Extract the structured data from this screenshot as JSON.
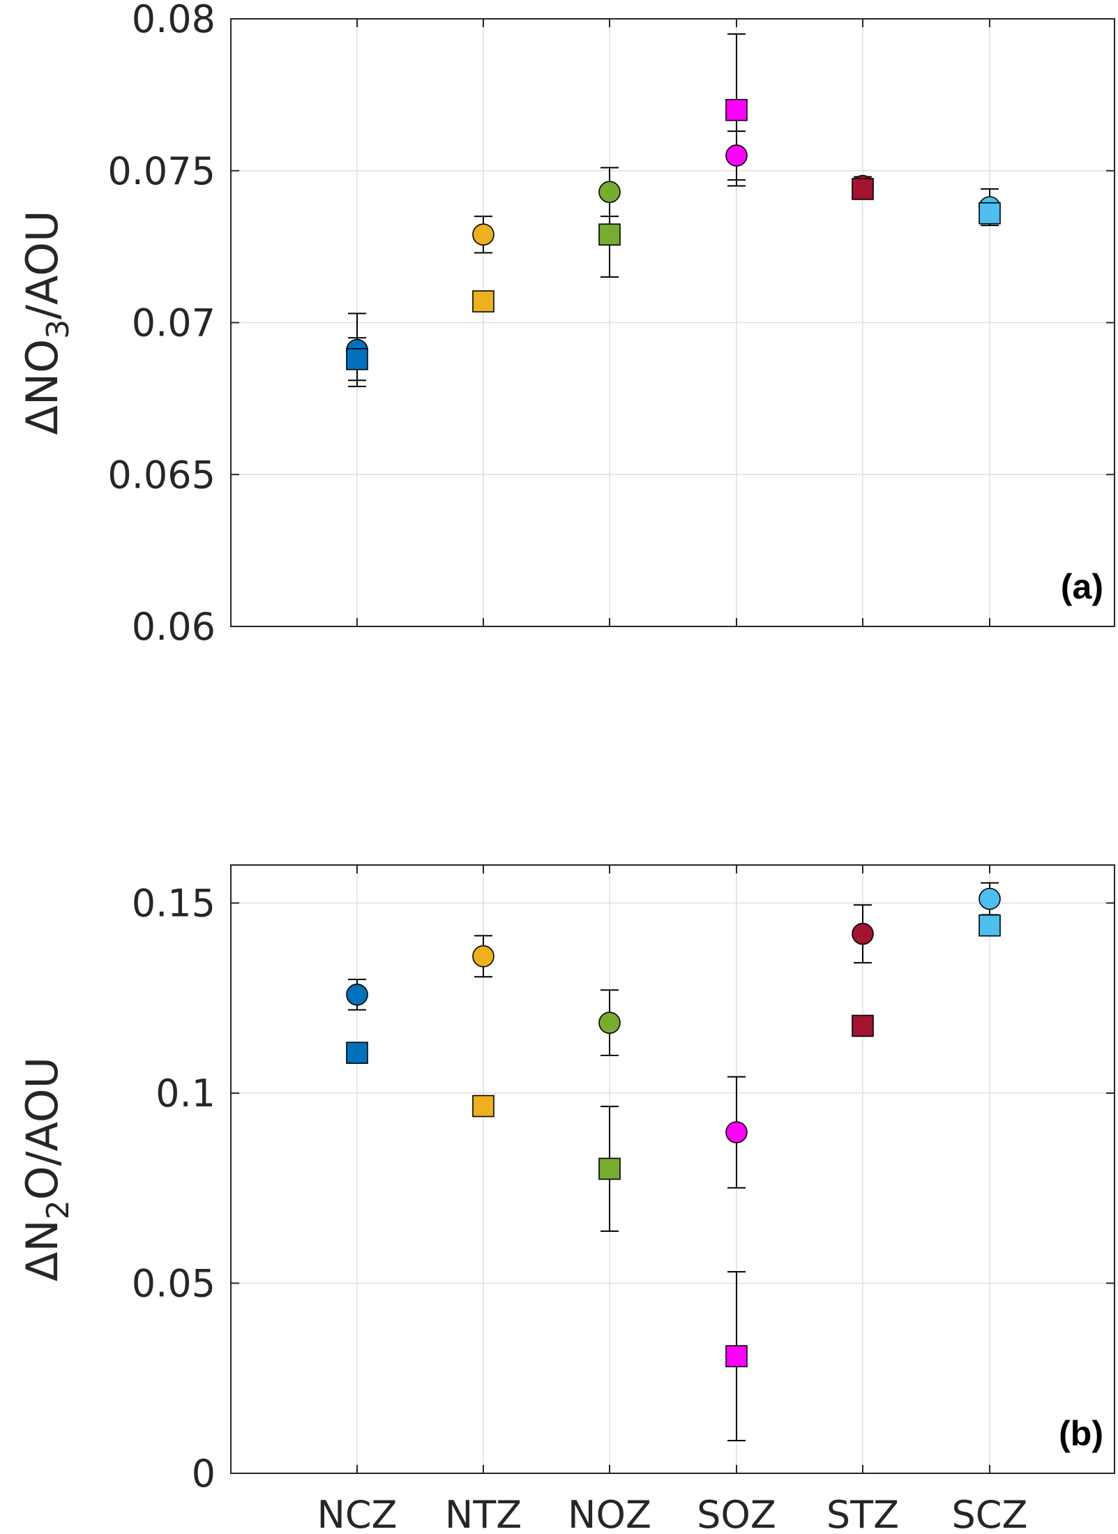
{
  "chart_data": [
    {
      "type": "scatter",
      "panel_label": "(a)",
      "ylabel_prefix": "ΔNO",
      "ylabel_sub": "3",
      "ylabel_suffix": "/AOU",
      "xlabel": "",
      "ylim": [
        0.06,
        0.08
      ],
      "yticks": [
        0.06,
        0.065,
        0.07,
        0.075,
        0.08
      ],
      "ytick_labels": [
        "0.06",
        "0.065",
        "0.07",
        "0.075",
        "0.08"
      ],
      "categories": [
        "NCZ",
        "NTZ",
        "NOZ",
        "SOZ",
        "STZ",
        "SCZ"
      ],
      "show_x_tick_labels": false,
      "grid": true,
      "series": [
        {
          "marker": "circle",
          "values": [
            0.0691,
            0.0729,
            0.0743,
            0.0755,
            0.0745,
            0.0738
          ],
          "errors": [
            0.0012,
            0.0006,
            0.0008,
            0.0008,
            0.0003,
            0.0006
          ]
        },
        {
          "marker": "square",
          "values": [
            0.0688,
            0.0707,
            0.0729,
            0.077,
            0.0744,
            0.0736
          ],
          "errors": [
            0.0007,
            0.0003,
            0.0014,
            0.0025,
            0.0003,
            0.0003
          ]
        }
      ]
    },
    {
      "type": "scatter",
      "panel_label": "(b)",
      "ylabel_prefix": "ΔN",
      "ylabel_sub": "2",
      "ylabel_suffix": "O/AOU",
      "xlabel": "",
      "ylim": [
        0,
        0.16
      ],
      "yticks": [
        0,
        0.05,
        0.1,
        0.15
      ],
      "ytick_labels": [
        "0",
        "0.05",
        "0.1",
        "0.15"
      ],
      "categories": [
        "NCZ",
        "NTZ",
        "NOZ",
        "SOZ",
        "STZ",
        "SCZ"
      ],
      "show_x_tick_labels": true,
      "grid": true,
      "series": [
        {
          "marker": "circle",
          "values": [
            0.1259,
            0.136,
            0.1185,
            0.0897,
            0.1419,
            0.1511
          ],
          "errors": [
            0.004,
            0.0054,
            0.0086,
            0.0146,
            0.0076,
            0.0042
          ]
        },
        {
          "marker": "square",
          "values": [
            0.1106,
            0.0966,
            0.0801,
            0.0308,
            0.1177,
            0.1441
          ],
          "errors": [
            0.0014,
            0.0014,
            0.0164,
            0.0222,
            0.0017,
            0.0017
          ]
        }
      ]
    }
  ],
  "category_colors": [
    "#0072bd",
    "#edb120",
    "#77ac30",
    "#ff00ff",
    "#a2142f",
    "#4dbeee"
  ]
}
